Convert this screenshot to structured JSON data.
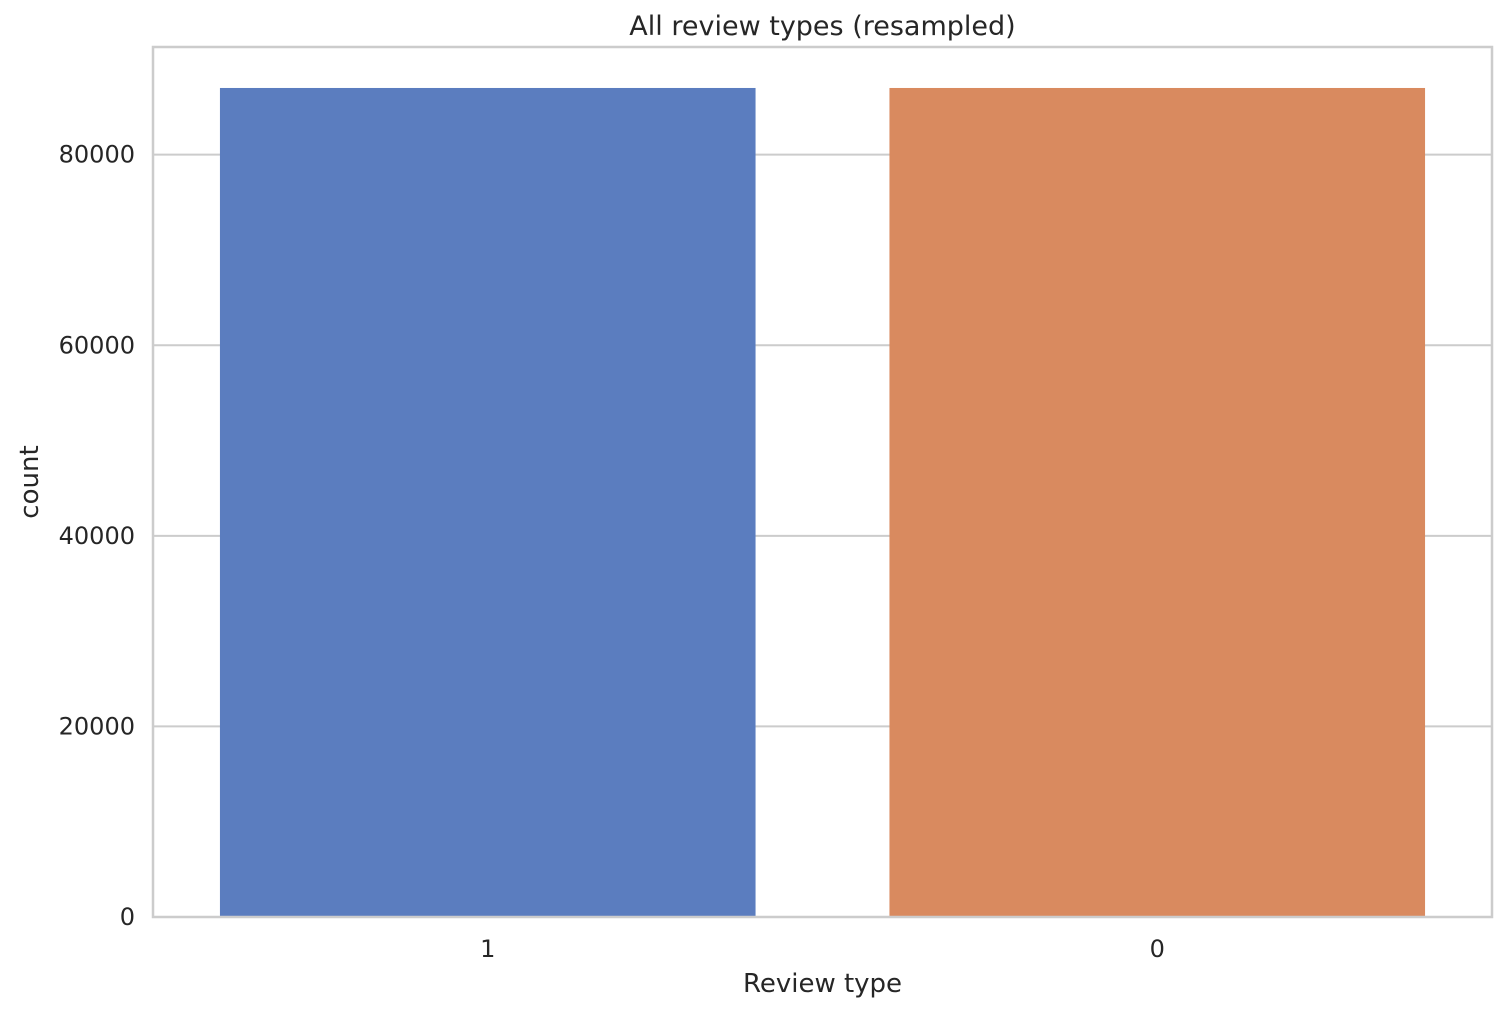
{
  "chart_data": {
    "type": "bar",
    "title": "All review types (resampled)",
    "xlabel": "Review type",
    "ylabel": "count",
    "categories": [
      "1",
      "0"
    ],
    "values": [
      87000,
      87000
    ],
    "colors": [
      "#5b7dbf",
      "#d98a5f"
    ],
    "ylim": [
      0,
      91300
    ],
    "yticks": [
      0,
      20000,
      40000,
      60000,
      80000
    ],
    "grid": true
  }
}
